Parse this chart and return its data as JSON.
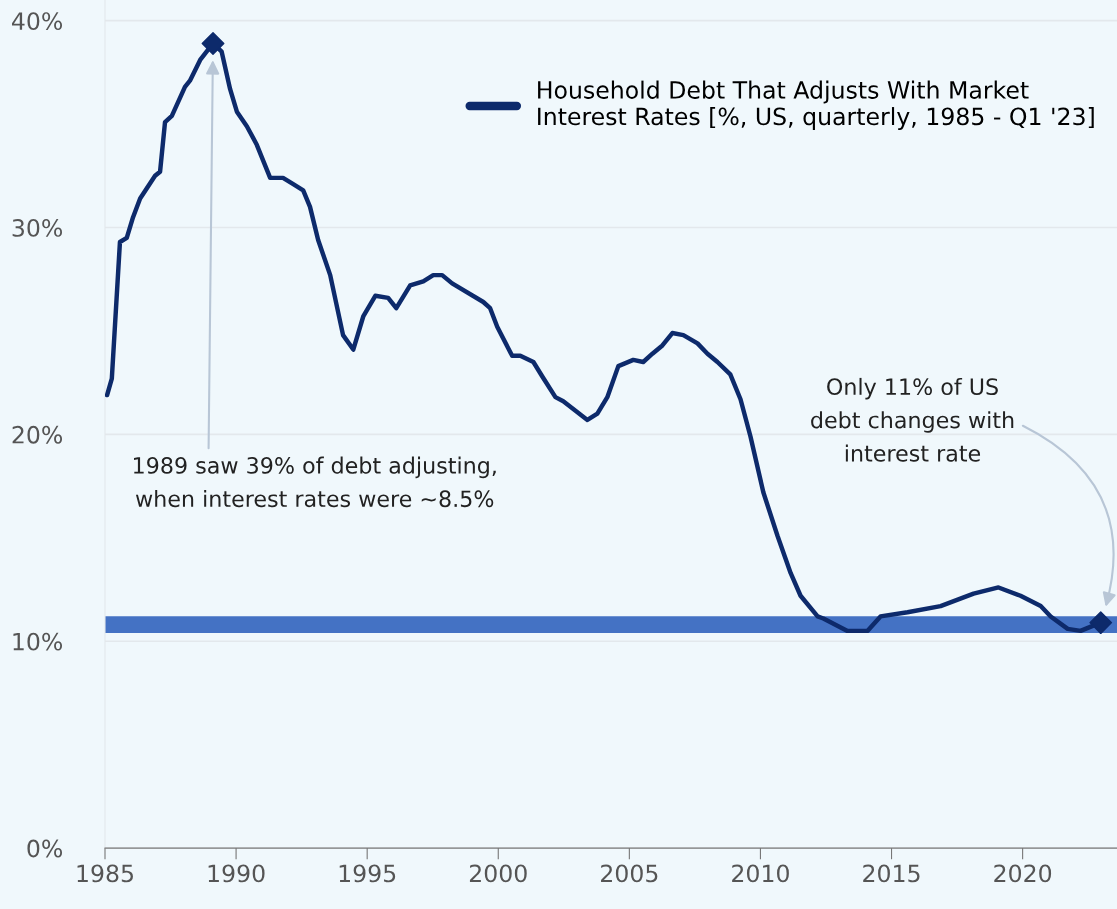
{
  "chart_data": {
    "type": "line",
    "x": [
      1985.08,
      1985.26,
      1985.57,
      1985.83,
      1986.07,
      1986.34,
      1986.91,
      1987.1,
      1987.29,
      1987.55,
      1988.05,
      1988.24,
      1988.63,
      1989.12,
      1989.45,
      1989.77,
      1990.03,
      1990.41,
      1990.79,
      1991.3,
      1991.79,
      1992.18,
      1992.56,
      1992.82,
      1993.13,
      1993.59,
      1994.08,
      1994.47,
      1994.85,
      1995.31,
      1995.8,
      1996.11,
      1996.64,
      1997.14,
      1997.52,
      1997.86,
      1998.24,
      1999.43,
      1999.69,
      1999.96,
      2000.53,
      2000.84,
      2001.34,
      2001.68,
      2002.18,
      2002.48,
      2003.4,
      2003.78,
      2004.16,
      2004.58,
      2005.15,
      2005.53,
      2005.88,
      2006.26,
      2006.64,
      2007.06,
      2007.6,
      2007.98,
      2008.36,
      2008.85,
      2009.24,
      2009.62,
      2010.11,
      2010.65,
      2011.15,
      2011.53,
      2012.18,
      2012.4,
      2013.32,
      2014.08,
      2014.58,
      2015.61,
      2016.87,
      2018.13,
      2019.08,
      2019.92,
      2020.69,
      2021.07,
      2021.72,
      2022.21,
      2022.98
    ],
    "series": [
      {
        "name": "Household Debt That Adjusts With Market\nInterest Rates [%, US, quarterly, 1985 - Q1 '23]",
        "color": "#0d2a6b",
        "values": [
          21.9,
          22.7,
          29.3,
          29.5,
          30.5,
          31.4,
          32.5,
          32.7,
          35.1,
          35.4,
          36.8,
          37.1,
          38.1,
          38.9,
          38.5,
          36.7,
          35.6,
          34.9,
          34.0,
          32.4,
          32.4,
          32.1,
          31.8,
          31.0,
          29.4,
          27.7,
          24.8,
          24.1,
          25.7,
          26.7,
          26.6,
          26.1,
          27.2,
          27.4,
          27.7,
          27.7,
          27.3,
          26.4,
          26.1,
          25.2,
          23.8,
          23.8,
          23.5,
          22.8,
          21.8,
          21.6,
          20.7,
          21.0,
          21.8,
          23.3,
          23.6,
          23.5,
          23.9,
          24.3,
          24.9,
          24.8,
          24.4,
          23.9,
          23.5,
          22.9,
          21.7,
          19.9,
          17.2,
          15.1,
          13.3,
          12.2,
          11.2,
          11.1,
          10.5,
          10.5,
          11.2,
          11.4,
          11.7,
          12.3,
          12.6,
          12.2,
          11.7,
          11.2,
          10.6,
          10.5,
          10.9
        ]
      },
      {
        "type": "scatter",
        "x": [
          1989.12,
          2022.98
        ],
        "color": "#0d2a6b",
        "marker": "diamond",
        "values": [
          38.9,
          10.9
        ]
      }
    ],
    "annotations": [
      "1989 saw 39% of debt adjusting,\nwhen interest rates were ~8.5%",
      "Only 11% of US\ndebt changes with\ninterest rate"
    ],
    "ref_lines": [
      {
        "axis": "y",
        "value": 10.8,
        "label": null,
        "color": "#4472c4"
      }
    ],
    "xlim": [
      1985,
      2023.6
    ],
    "xticks": [
      1985,
      1990,
      1995,
      2000,
      2005,
      2010,
      2015,
      2020
    ],
    "ylim": [
      0,
      41
    ],
    "yticks": [
      {
        "value": 0,
        "label": "0%"
      },
      {
        "value": 10,
        "label": "10%"
      },
      {
        "value": 20,
        "label": "20%"
      },
      {
        "value": 30,
        "label": "30%"
      },
      {
        "value": 40,
        "label": "40%"
      }
    ],
    "grid": "y",
    "legend": "top right",
    "marker": "none",
    "line_style": "solid"
  }
}
